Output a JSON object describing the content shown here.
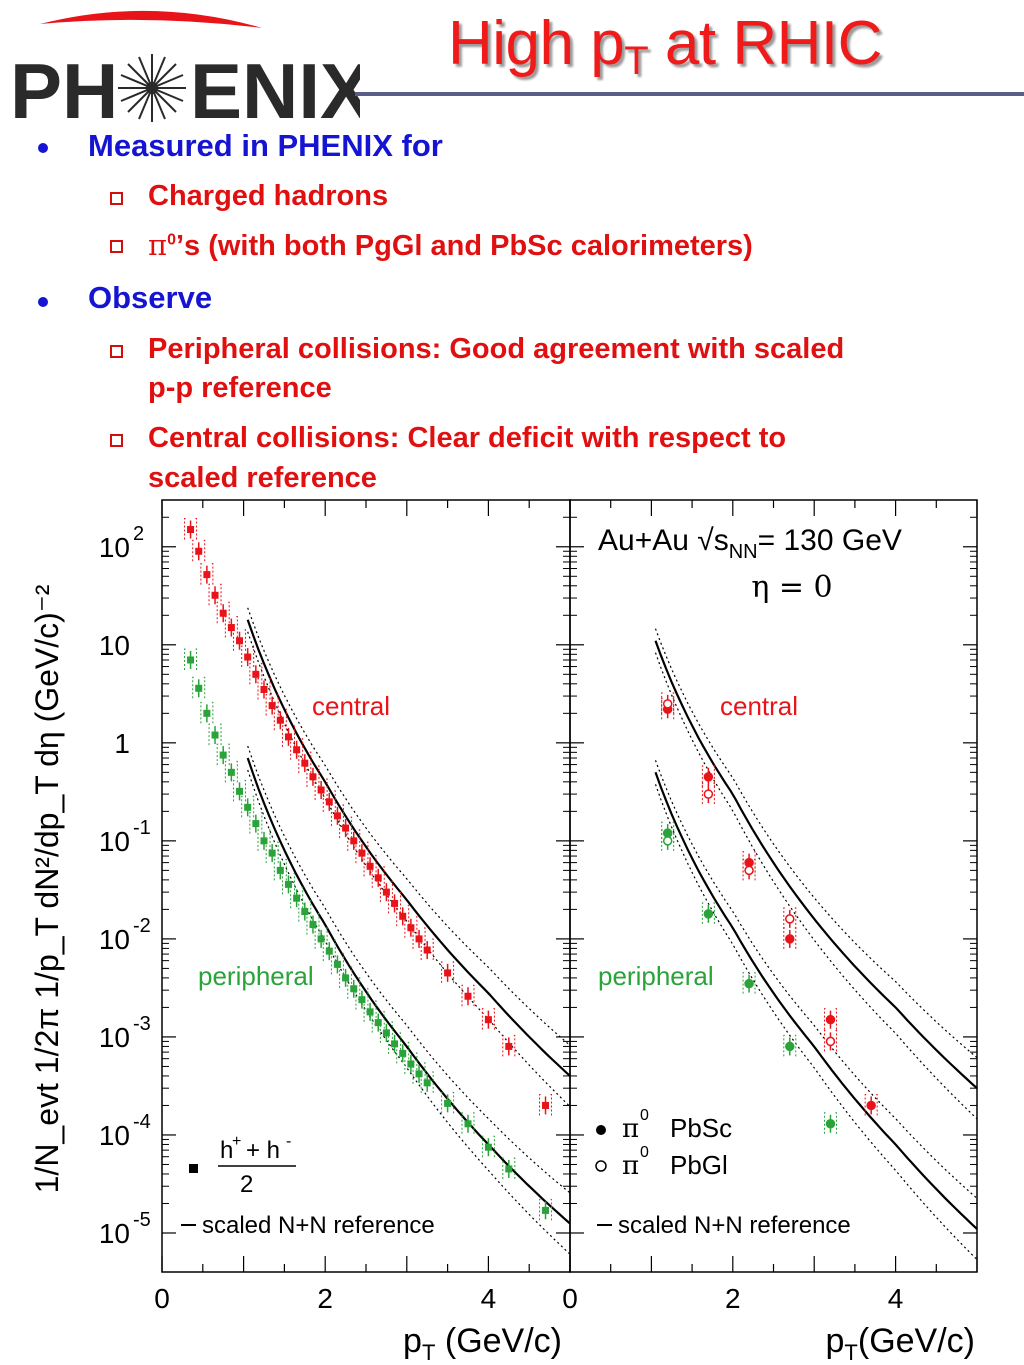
{
  "logo": {
    "text_left": "PH",
    "text_right": "ENIX",
    "name": "PHENIX"
  },
  "title": {
    "main": "High p",
    "sub": "T",
    "rest": " at RHIC"
  },
  "bullets": [
    {
      "text": "Measured in PHENIX for",
      "subs": [
        "Charged hadrons",
        "’s (with both PgGl and PbSc calorimeters)"
      ]
    },
    {
      "text": "Observe",
      "subs": [
        "Peripheral collisions: Good agreement with scaled",
        "p-p reference",
        "Central collisions: Clear deficit with respect to",
        "scaled reference"
      ]
    }
  ],
  "pi0_prefix": "π",
  "pi0_sup": "0",
  "colors": {
    "title": "#ef1b1b",
    "bullet_main": "#1414d2",
    "bullet_sub": "#e01010",
    "central": "#e8141a",
    "peripheral": "#2aa33a",
    "line": "#000000"
  },
  "chart_data": [
    {
      "type": "scatter",
      "log_y": true,
      "xlim": [
        0,
        5
      ],
      "ylim": [
        4e-06,
        300
      ],
      "xlabel": "p",
      "xlabel_sub": "T",
      "xlabel_rest": " (GeV/c)",
      "ylabel": "1/N_evt 1/2π 1/p_T dN²/dp_T dη (GeV/c)⁻²",
      "x_ticks": [
        "0",
        "2",
        "4"
      ],
      "y_ticks": [
        "10 2",
        "10",
        "1",
        "10 -1",
        "10 -2",
        "10 -3",
        "10 -4",
        "10 -5"
      ],
      "labels": {
        "central": "central",
        "peripheral": "peripheral"
      },
      "legend": {
        "marker_label": "h⁺+ h⁻ / 2",
        "num": "h",
        "den": "2",
        "line_label": "scaled N+N reference"
      },
      "series": [
        {
          "name": "central",
          "x": [
            0.35,
            0.45,
            0.55,
            0.65,
            0.75,
            0.85,
            0.95,
            1.05,
            1.15,
            1.25,
            1.35,
            1.45,
            1.55,
            1.65,
            1.75,
            1.85,
            1.95,
            2.05,
            2.15,
            2.25,
            2.35,
            2.45,
            2.55,
            2.65,
            2.75,
            2.85,
            2.95,
            3.05,
            3.15,
            3.25,
            3.5,
            3.75,
            4.0,
            4.25,
            4.7
          ],
          "y": [
            150,
            90,
            52,
            32,
            21,
            15,
            11,
            7.5,
            5.0,
            3.5,
            2.4,
            1.7,
            1.15,
            0.85,
            0.62,
            0.45,
            0.33,
            0.25,
            0.18,
            0.135,
            0.1,
            0.075,
            0.055,
            0.042,
            0.03,
            0.023,
            0.017,
            0.013,
            0.01,
            0.0077,
            0.0045,
            0.0026,
            0.0015,
            0.0008,
            0.0002
          ]
        },
        {
          "name": "peripheral",
          "x": [
            0.35,
            0.45,
            0.55,
            0.65,
            0.75,
            0.85,
            0.95,
            1.05,
            1.15,
            1.25,
            1.35,
            1.45,
            1.55,
            1.65,
            1.75,
            1.85,
            1.95,
            2.05,
            2.15,
            2.25,
            2.35,
            2.45,
            2.55,
            2.65,
            2.75,
            2.85,
            2.95,
            3.05,
            3.15,
            3.25,
            3.5,
            3.75,
            4.0,
            4.25,
            4.7
          ],
          "y": [
            7.0,
            3.6,
            2.0,
            1.2,
            0.75,
            0.5,
            0.32,
            0.22,
            0.15,
            0.1,
            0.075,
            0.05,
            0.036,
            0.026,
            0.019,
            0.014,
            0.01,
            0.0075,
            0.0055,
            0.004,
            0.0031,
            0.0024,
            0.0018,
            0.0014,
            0.0011,
            0.00085,
            0.00068,
            0.00053,
            0.00042,
            0.00034,
            0.00021,
            0.00013,
            7.5e-05,
            4.5e-05,
            1.7e-05
          ]
        }
      ],
      "reference_curves": [
        {
          "name": "central",
          "x": [
            1.05,
            2,
            3,
            4,
            5
          ],
          "y": [
            18,
            0.4,
            0.025,
            0.0028,
            0.0004
          ]
        },
        {
          "name": "peripheral",
          "x": [
            1.05,
            2,
            3,
            4,
            5
          ],
          "y": [
            0.7,
            0.014,
            0.0008,
            8e-05,
            1.25e-05
          ]
        }
      ]
    },
    {
      "type": "scatter",
      "log_y": true,
      "xlim": [
        0,
        5
      ],
      "ylim": [
        4e-06,
        300
      ],
      "annotation": {
        "text1": "Au+Au √s",
        "text1_sub": "NN",
        "text1_rest": "= 130 GeV",
        "text2": "η = 0"
      },
      "xlabel": "p",
      "xlabel_sub": "T",
      "xlabel_rest": "(GeV/c)",
      "x_ticks": [
        "0",
        "2",
        "4"
      ],
      "labels": {
        "central": "central",
        "peripheral": "peripheral"
      },
      "legend": {
        "pbsc": "PbSc",
        "pbgl": "PbGl",
        "pi0": "π",
        "sup": "0",
        "line_label": "scaled N+N reference"
      },
      "series": [
        {
          "name": "central π0 PbSc",
          "x": [
            1.2,
            1.7,
            2.2,
            2.7,
            3.2,
            3.7
          ],
          "y": [
            2.2,
            0.45,
            0.06,
            0.01,
            0.0015,
            0.0002
          ]
        },
        {
          "name": "central π0 PbGl",
          "x": [
            1.2,
            1.7,
            2.2,
            2.7,
            3.2
          ],
          "y": [
            2.5,
            0.3,
            0.05,
            0.016,
            0.0009
          ]
        },
        {
          "name": "peripheral π0 PbSc",
          "x": [
            1.2,
            1.7,
            2.2,
            2.7,
            3.2
          ],
          "y": [
            0.12,
            0.018,
            0.0035,
            0.0008,
            0.00013
          ]
        },
        {
          "name": "peripheral π0 PbGl",
          "x": [
            1.2
          ],
          "y": [
            0.1
          ]
        }
      ],
      "reference_curves": [
        {
          "name": "central",
          "x": [
            1.05,
            2,
            3,
            4,
            5
          ],
          "y": [
            11,
            0.3,
            0.016,
            0.002,
            0.0003
          ]
        },
        {
          "name": "peripheral",
          "x": [
            1.05,
            2,
            3,
            4,
            5
          ],
          "y": [
            0.5,
            0.013,
            0.0008,
            8e-05,
            1.1e-05
          ]
        }
      ]
    }
  ]
}
